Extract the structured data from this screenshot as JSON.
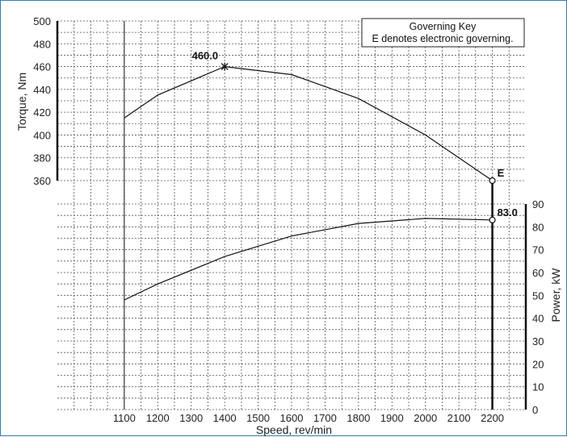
{
  "chart_data": {
    "type": "line",
    "x": [
      1100,
      1200,
      1400,
      1600,
      1800,
      2000,
      2200
    ],
    "xlabel": "Speed, rev/min",
    "x_ticks": [
      1100,
      1200,
      1300,
      1400,
      1500,
      1600,
      1700,
      1800,
      1900,
      2000,
      2100,
      2200
    ],
    "xlim": [
      900,
      2300
    ],
    "grid": true,
    "series": [
      {
        "axis": "left",
        "values": [
          415,
          435,
          460,
          453,
          432,
          400,
          360
        ],
        "ylabel": "Torque, Nm",
        "ylim": [
          360,
          500
        ],
        "ticks": [
          360,
          380,
          400,
          420,
          440,
          460,
          480,
          500
        ]
      },
      {
        "axis": "right",
        "values": [
          48,
          55,
          67,
          76,
          81.5,
          83.7,
          83
        ],
        "ylabel": "Power, kW",
        "ylim": [
          0,
          90
        ],
        "ticks": [
          0,
          10,
          20,
          30,
          40,
          50,
          60,
          70,
          80,
          90
        ]
      }
    ],
    "annotations": [
      {
        "series": 0,
        "x": 1400,
        "y": 460,
        "text": "460.0",
        "marker": "star"
      },
      {
        "series": 0,
        "x": 2200,
        "y": 360,
        "text": "E",
        "marker": "circle"
      },
      {
        "series": 1,
        "x": 2200,
        "y": 83,
        "text": "83.0",
        "marker": "circle"
      }
    ],
    "legend": {
      "title": "Governing Key",
      "text": "E denotes electronic governing.",
      "position": "top-right"
    }
  }
}
